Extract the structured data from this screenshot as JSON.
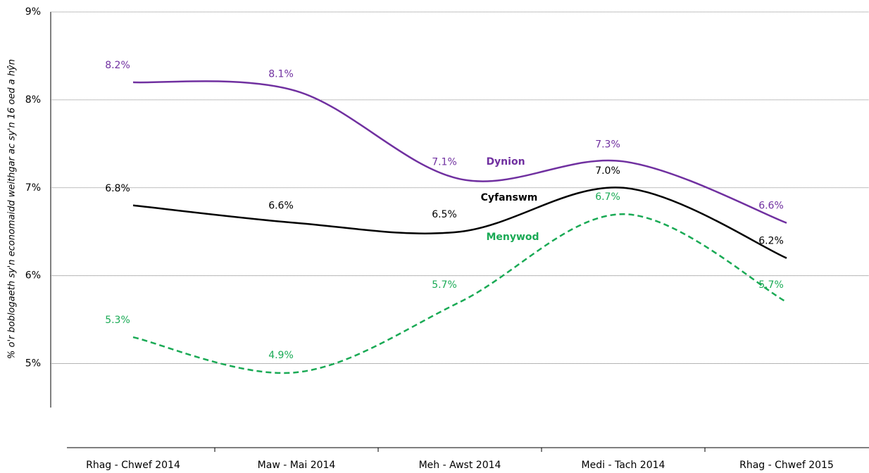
{
  "chart_data": {
    "type": "line",
    "y_label": "% o'r boblogaeth sy'n economaidd weithgar ac sy'n 16 oed a hŷn",
    "categories": [
      "Rhag - Chwef 2014",
      "Maw - Mai 2014",
      "Meh - Awst 2014",
      "Medi - Tach 2014",
      "Rhag - Chwef 2015"
    ],
    "series": [
      {
        "name": "Dynion",
        "color": "#7030a0",
        "dashed": false,
        "values": [
          8.2,
          8.1,
          7.1,
          7.3,
          6.6
        ],
        "value_labels": [
          "8.2%",
          "8.1%",
          "7.1%",
          "7.3%",
          "6.6%"
        ]
      },
      {
        "name": "Cyfanswm",
        "color": "#000000",
        "dashed": false,
        "values": [
          6.8,
          6.6,
          6.5,
          7.0,
          6.2
        ],
        "value_labels": [
          "6.8%",
          "6.6%",
          "6.5%",
          "7.0%",
          "6.2%"
        ]
      },
      {
        "name": "Menywod",
        "color": "#1aaa55",
        "dashed": true,
        "values": [
          5.3,
          4.9,
          5.7,
          6.7,
          5.7
        ],
        "value_labels": [
          "5.3%",
          "4.9%",
          "5.7%",
          "6.7%",
          "5.7%"
        ]
      }
    ],
    "ylim": [
      4.5,
      9
    ],
    "yticks": [
      {
        "value": 5,
        "label": "5%"
      },
      {
        "value": 6,
        "label": "6%"
      },
      {
        "value": 7,
        "label": "7%"
      },
      {
        "value": 8,
        "label": "8%"
      },
      {
        "value": 9,
        "label": "9%"
      }
    ],
    "grid": true
  }
}
